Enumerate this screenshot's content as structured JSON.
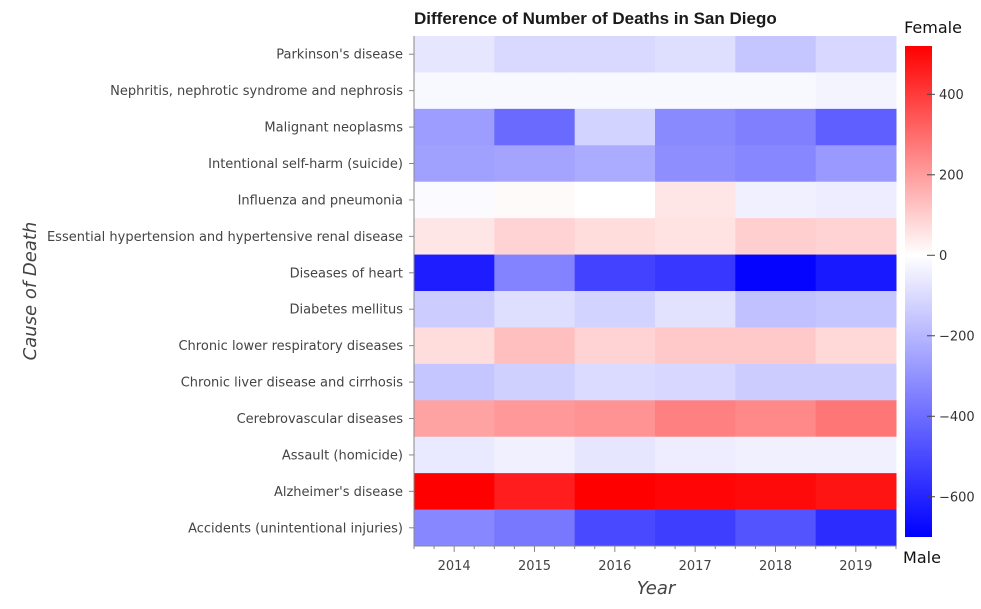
{
  "chart_data": {
    "type": "heatmap",
    "title": "Difference of Number of Deaths in San Diego",
    "xlabel": "Year",
    "ylabel": "Cause of Death",
    "x": [
      "2014",
      "2015",
      "2016",
      "2017",
      "2018",
      "2019"
    ],
    "y": [
      "Parkinson's disease",
      "Nephritis, nephrotic syndrome and nephrosis",
      "Malignant neoplasms",
      "Intentional self-harm (suicide)",
      "Influenza and pneumonia",
      "Essential hypertension and hypertensive renal disease",
      "Diseases of heart",
      "Diabetes mellitus",
      "Chronic lower respiratory diseases",
      "Chronic liver disease and cirrhosis",
      "Cerebrovascular diseases",
      "Assault (homicide)",
      "Alzheimer's disease",
      "Accidents (unintentional injuries)"
    ],
    "values": [
      [
        -70,
        -105,
        -105,
        -90,
        -160,
        -110
      ],
      [
        -20,
        -20,
        -20,
        -20,
        -20,
        -30
      ],
      [
        -270,
        -410,
        -120,
        -320,
        -350,
        -440
      ],
      [
        -260,
        -250,
        -230,
        -310,
        -330,
        -280
      ],
      [
        -10,
        10,
        0,
        50,
        -40,
        -50
      ],
      [
        50,
        90,
        70,
        60,
        100,
        90
      ],
      [
        -620,
        -340,
        -520,
        -550,
        -690,
        -630
      ],
      [
        -140,
        -90,
        -120,
        -80,
        -170,
        -160
      ],
      [
        70,
        130,
        90,
        110,
        110,
        80
      ],
      [
        -160,
        -130,
        -100,
        -110,
        -140,
        -140
      ],
      [
        190,
        210,
        220,
        260,
        240,
        280
      ],
      [
        -60,
        -40,
        -70,
        -50,
        -40,
        -40
      ],
      [
        520,
        460,
        530,
        510,
        500,
        480
      ],
      [
        -330,
        -370,
        -500,
        -530,
        -470,
        -580
      ]
    ],
    "colorbar": {
      "min": -700,
      "max": 520,
      "ticks": [
        400,
        200,
        0,
        -200,
        -400,
        -600
      ],
      "top_label": "Female",
      "bottom_label": "Male"
    },
    "colors": {
      "high": "#ff0000",
      "mid": "#ffffff",
      "low": "#0000ff"
    },
    "grid": false
  }
}
